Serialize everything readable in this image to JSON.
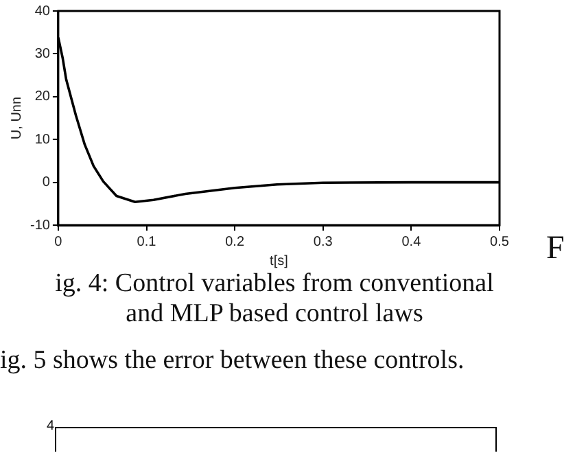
{
  "chart_data": {
    "type": "line",
    "xlabel": "t[s]",
    "ylabel": "U, Unn",
    "x": [
      0,
      0.005,
      0.009,
      0.02,
      0.03,
      0.04,
      0.051,
      0.066,
      0.087,
      0.108,
      0.144,
      0.2,
      0.248,
      0.3,
      0.4,
      0.5
    ],
    "series": [
      {
        "color": "#000000",
        "values": [
          33.8,
          29,
          24,
          15.6,
          8.8,
          3.8,
          0.2,
          -3.2,
          -4.6,
          -4.1,
          -2.7,
          -1.3,
          -0.5,
          -0.1,
          0,
          0
        ]
      }
    ],
    "xlim": [
      0,
      0.5
    ],
    "xticks": [
      0,
      0.1,
      0.2,
      0.3,
      0.4,
      0.5
    ],
    "ylim": [
      -10,
      40
    ],
    "yticks": [
      -10,
      0,
      10,
      20,
      30,
      40
    ],
    "grid": false,
    "legend": false,
    "marker": "none",
    "line_style": "solid",
    "annotations": [
      "F",
      "ig. 4: Control variables from conventional\nand MLP based control laws",
      "ig. 5 shows the error between these controls.",
      "4"
    ]
  }
}
